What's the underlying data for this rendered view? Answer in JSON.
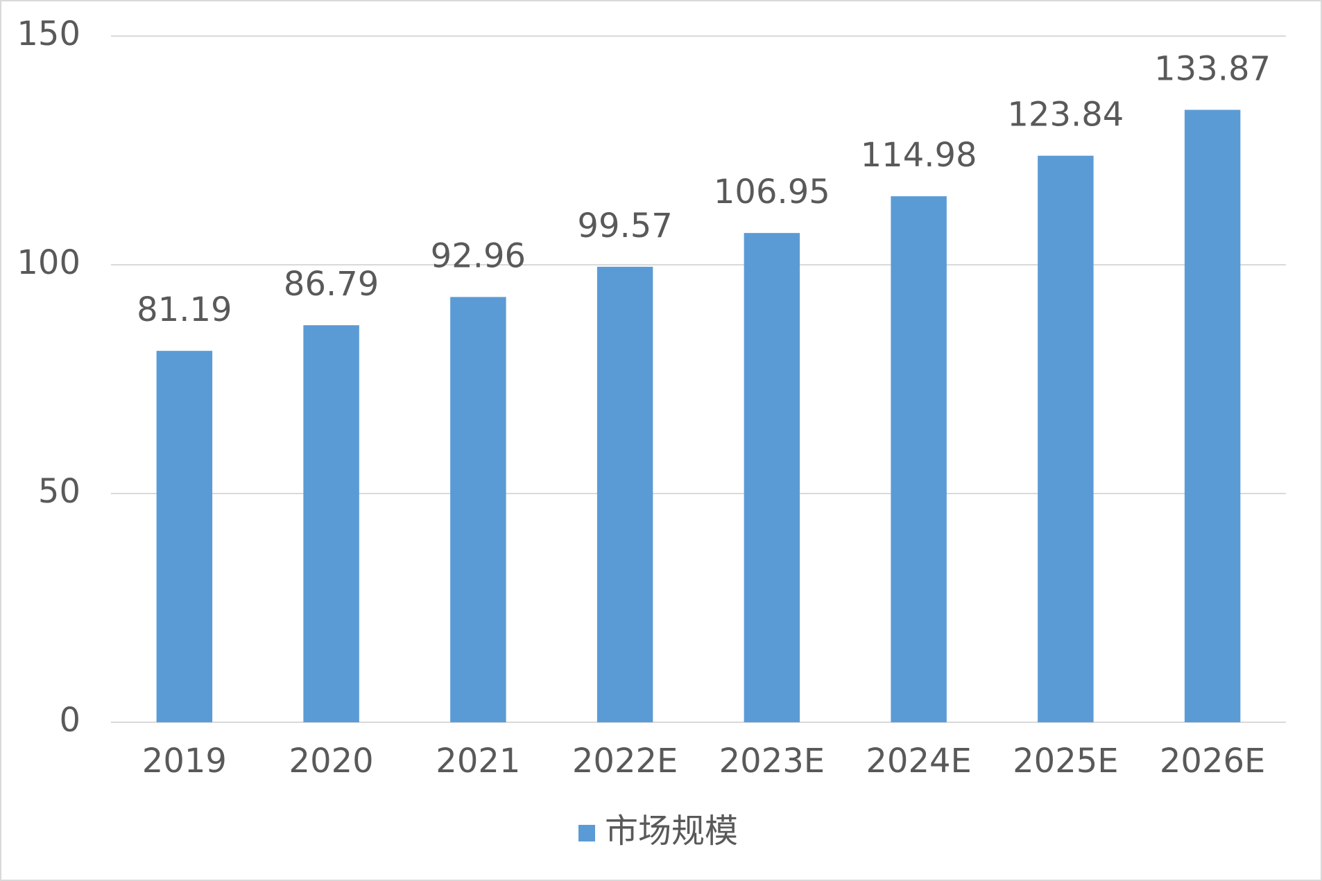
{
  "chart_data": {
    "type": "bar",
    "categories": [
      "2019",
      "2020",
      "2021",
      "2022E",
      "2023E",
      "2024E",
      "2025E",
      "2026E"
    ],
    "series": [
      {
        "name": "市场规模",
        "color": "#5b9bd5",
        "values": [
          81.19,
          86.79,
          92.96,
          99.57,
          106.95,
          114.98,
          123.84,
          133.87
        ]
      }
    ],
    "ylim": [
      0,
      150
    ],
    "yticks": [
      0,
      50,
      100,
      150
    ],
    "grid": true,
    "legend": "bottom"
  }
}
